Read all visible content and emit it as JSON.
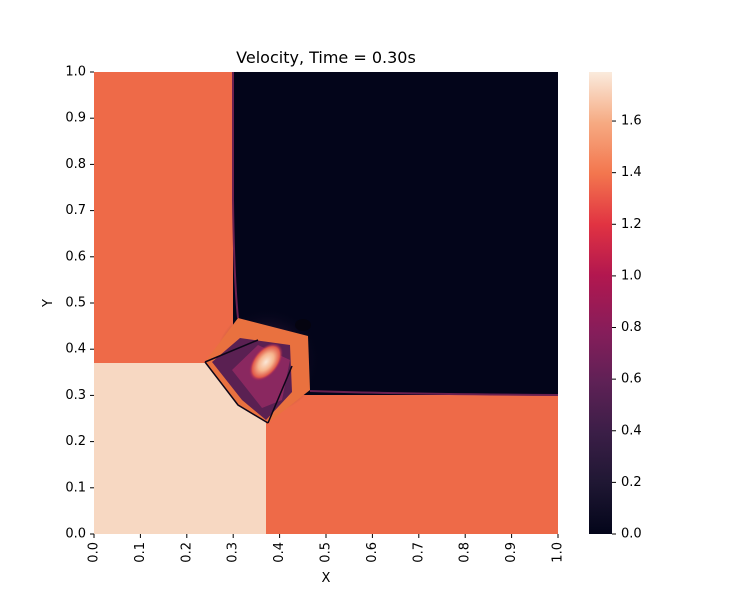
{
  "chart_data": {
    "type": "heatmap",
    "title": "Velocity, Time = 0.30s",
    "xlabel": "X",
    "ylabel": "Y",
    "xlim": [
      0.0,
      1.0
    ],
    "ylim": [
      0.0,
      1.0
    ],
    "x_ticks": [
      "0.0",
      "0.1",
      "0.2",
      "0.3",
      "0.4",
      "0.5",
      "0.6",
      "0.7",
      "0.8",
      "0.9",
      "1.0"
    ],
    "y_ticks": [
      "0.0",
      "0.1",
      "0.2",
      "0.3",
      "0.4",
      "0.5",
      "0.6",
      "0.7",
      "0.8",
      "0.9",
      "1.0"
    ],
    "colorbar": {
      "range": [
        0.0,
        1.79
      ],
      "ticks": [
        "0.0",
        "0.2",
        "0.4",
        "0.6",
        "0.8",
        "1.0",
        "1.2",
        "1.4",
        "1.6"
      ],
      "colormap": "rocket"
    },
    "regions": [
      {
        "name": "top-left quadrant",
        "x": [
          0.0,
          0.3
        ],
        "y": [
          0.37,
          1.0
        ],
        "value": 1.2
      },
      {
        "name": "top-right quadrant",
        "x": [
          0.3,
          1.0
        ],
        "y": [
          0.3,
          1.0
        ],
        "value": 0.0
      },
      {
        "name": "bottom-left quadrant",
        "x": [
          0.0,
          0.37
        ],
        "y": [
          0.0,
          0.37
        ],
        "value": 1.72
      },
      {
        "name": "bottom-right quadrant",
        "x": [
          0.37,
          1.0
        ],
        "y": [
          0.0,
          0.3
        ],
        "value": 1.2
      }
    ],
    "features": [
      {
        "name": "center peak",
        "x": 0.37,
        "y": 0.36,
        "value": 1.79
      },
      {
        "name": "shock diamond",
        "x": [
          0.24,
          0.46
        ],
        "y": [
          0.24,
          0.47
        ],
        "value": 0.6
      }
    ],
    "grid": false
  }
}
